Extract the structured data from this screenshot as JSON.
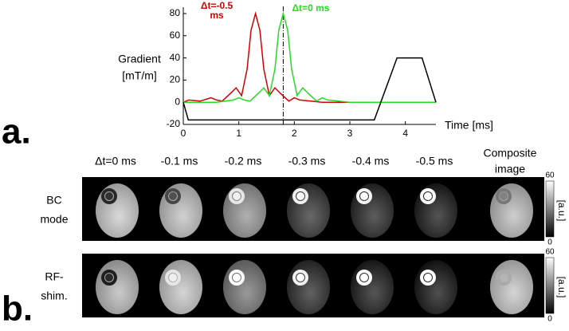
{
  "chart_data": {
    "type": "line",
    "y_label": [
      "Gradient",
      "[mT/m]"
    ],
    "x_label": "Time [ms]",
    "xlim": [
      0,
      4.55
    ],
    "ylim": [
      -20,
      80
    ],
    "xticks": [
      0,
      1,
      2,
      3,
      4
    ],
    "yticks": [
      -20,
      0,
      20,
      40,
      60,
      80
    ],
    "vline": 1.8,
    "series": [
      {
        "color": "#d40000",
        "label": [
          "Δt=-0.5",
          "ms"
        ],
        "x": [
          0,
          0.1,
          0.3,
          0.5,
          0.6,
          0.7,
          0.85,
          0.95,
          1.05,
          1.15,
          1.22,
          1.3,
          1.38,
          1.45,
          1.55,
          1.65,
          1.75,
          1.9,
          2.0,
          2.1,
          2.3,
          2.5,
          4.55
        ],
        "values": [
          0,
          2,
          1,
          4,
          2,
          1,
          8,
          13,
          6,
          30,
          65,
          80,
          65,
          30,
          6,
          13,
          8,
          1,
          4,
          2,
          1,
          0,
          0
        ]
      },
      {
        "color": "#22dd22",
        "label": [
          "Δt=0 ms"
        ],
        "x": [
          0,
          0.6,
          0.9,
          1.0,
          1.1,
          1.2,
          1.35,
          1.45,
          1.55,
          1.65,
          1.72,
          1.8,
          1.88,
          1.95,
          2.05,
          2.15,
          2.25,
          2.4,
          2.5,
          2.6,
          2.8,
          3.0,
          4.55
        ],
        "values": [
          0,
          0,
          2,
          4,
          2,
          1,
          8,
          13,
          6,
          30,
          65,
          80,
          65,
          30,
          6,
          13,
          8,
          1,
          4,
          2,
          1,
          0,
          0
        ]
      },
      {
        "color": "#000000",
        "x": [
          0,
          0.09,
          3.44,
          3.85,
          4.3,
          4.55
        ],
        "values": [
          0,
          -16,
          -16,
          40,
          40,
          0
        ]
      }
    ]
  },
  "panel_labels": [
    "a.",
    "b."
  ],
  "columns": [
    [
      "Δt=0 ms"
    ],
    [
      "-0.1 ms"
    ],
    [
      "-0.2 ms"
    ],
    [
      "-0.3 ms"
    ],
    [
      "-0.4 ms"
    ],
    [
      "-0.5 ms"
    ],
    [
      "Composite",
      "image"
    ]
  ],
  "rows": [
    {
      "label": [
        "BC",
        "mode"
      ],
      "colorbar_ticks": [
        60,
        0
      ],
      "colorbar_unit": "[a.u.]"
    },
    {
      "label": [
        "RF-",
        "shim."
      ],
      "colorbar_ticks": [
        60,
        0
      ],
      "colorbar_unit": "[a.u.]"
    }
  ]
}
